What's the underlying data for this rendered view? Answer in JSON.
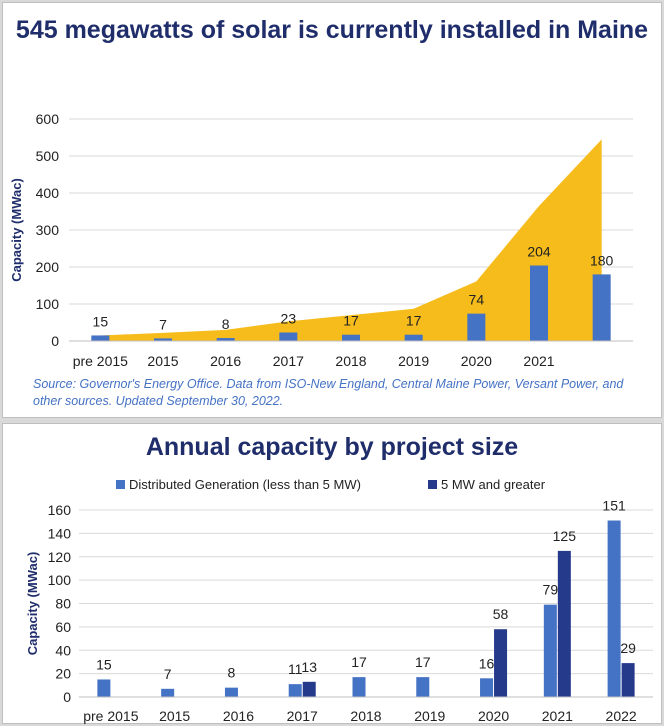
{
  "colors": {
    "area": "#f5bc1c",
    "bar_light": "#4472c4",
    "bar_dark": "#263a8c",
    "title": "#1f2d6b",
    "grid": "#d9d9d9"
  },
  "chart_data": [
    {
      "type": "bar",
      "title": "545 megawatts of solar is currently installed in Maine",
      "ylabel": "Capacity (MWac)",
      "xlabel": "",
      "ylim": [
        0,
        600
      ],
      "yticks": [
        0,
        100,
        200,
        300,
        400,
        500,
        600
      ],
      "grid": true,
      "categories": [
        "pre 2015",
        "2015",
        "2016",
        "2017",
        "2018",
        "2019",
        "2020",
        "2021",
        ""
      ],
      "series": [
        {
          "type": "bar",
          "values": [
            15,
            7,
            8,
            23,
            17,
            17,
            74,
            204,
            180
          ]
        },
        {
          "type": "area",
          "values": [
            15,
            22,
            30,
            53,
            70,
            87,
            161,
            365,
            545
          ]
        }
      ],
      "source": "Source: Governor's Energy Office. Data from ISO-New England, Central Maine Power, Versant Power, and other sources. Updated September 30, 2022."
    },
    {
      "type": "bar",
      "title": "Annual capacity by project size",
      "ylabel": "Capacity (MWac)",
      "xlabel": "",
      "ylim": [
        0,
        160
      ],
      "yticks": [
        0,
        20,
        40,
        60,
        80,
        100,
        120,
        140,
        160
      ],
      "grid": true,
      "legend": "top",
      "categories": [
        "pre 2015",
        "2015",
        "2016",
        "2017",
        "2018",
        "2019",
        "2020",
        "2021",
        "2022"
      ],
      "series": [
        {
          "name": "Distributed Generation (less than 5 MW)",
          "values": [
            15,
            7,
            8,
            11,
            17,
            17,
            16,
            79,
            151
          ]
        },
        {
          "name": "5 MW and greater",
          "values": [
            null,
            null,
            null,
            13,
            null,
            null,
            58,
            125,
            29
          ]
        }
      ]
    }
  ]
}
